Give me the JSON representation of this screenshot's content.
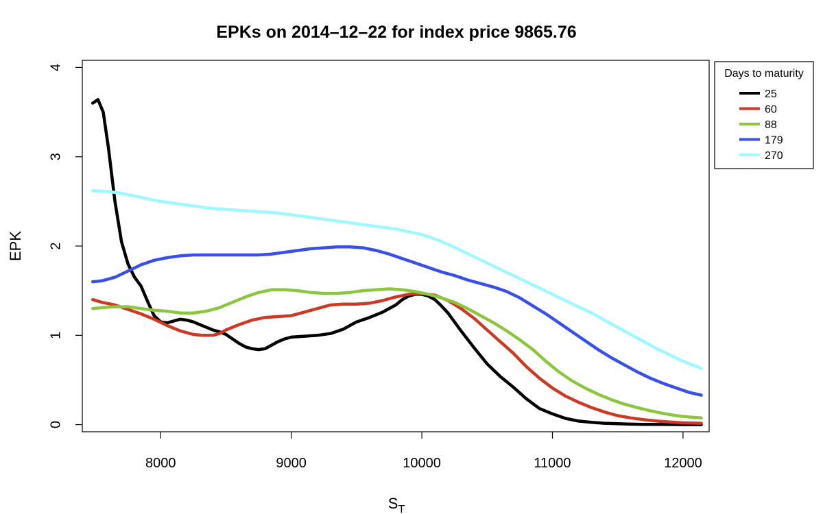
{
  "chart_data": {
    "type": "line",
    "title": "EPKs on 2014–12–22 for index price 9865.76",
    "xlabel": "S",
    "xlabel_sub": "T",
    "ylabel": "EPK",
    "xlim": [
      7400,
      12200
    ],
    "ylim": [
      -0.08,
      4.08
    ],
    "x_ticks": [
      8000,
      9000,
      10000,
      11000,
      12000
    ],
    "y_ticks": [
      0,
      1,
      2,
      3,
      4
    ],
    "grid": false,
    "legend": {
      "title": "Days to maturity",
      "placement": "outside-top-right"
    },
    "series": [
      {
        "name": "25",
        "color": "#000000",
        "points": [
          [
            7480,
            3.6
          ],
          [
            7520,
            3.64
          ],
          [
            7560,
            3.5
          ],
          [
            7600,
            3.1
          ],
          [
            7650,
            2.5
          ],
          [
            7700,
            2.05
          ],
          [
            7750,
            1.8
          ],
          [
            7800,
            1.65
          ],
          [
            7850,
            1.55
          ],
          [
            7900,
            1.38
          ],
          [
            7950,
            1.22
          ],
          [
            8000,
            1.15
          ],
          [
            8050,
            1.14
          ],
          [
            8100,
            1.16
          ],
          [
            8150,
            1.18
          ],
          [
            8200,
            1.17
          ],
          [
            8250,
            1.15
          ],
          [
            8300,
            1.12
          ],
          [
            8350,
            1.09
          ],
          [
            8400,
            1.06
          ],
          [
            8450,
            1.04
          ],
          [
            8500,
            1.01
          ],
          [
            8550,
            0.96
          ],
          [
            8600,
            0.91
          ],
          [
            8650,
            0.87
          ],
          [
            8700,
            0.85
          ],
          [
            8750,
            0.84
          ],
          [
            8800,
            0.85
          ],
          [
            8850,
            0.89
          ],
          [
            8900,
            0.93
          ],
          [
            8950,
            0.96
          ],
          [
            9000,
            0.98
          ],
          [
            9100,
            0.99
          ],
          [
            9200,
            1.0
          ],
          [
            9300,
            1.02
          ],
          [
            9400,
            1.07
          ],
          [
            9500,
            1.15
          ],
          [
            9600,
            1.2
          ],
          [
            9700,
            1.26
          ],
          [
            9800,
            1.34
          ],
          [
            9850,
            1.4
          ],
          [
            9900,
            1.44
          ],
          [
            9950,
            1.46
          ],
          [
            10000,
            1.46
          ],
          [
            10050,
            1.44
          ],
          [
            10100,
            1.4
          ],
          [
            10150,
            1.33
          ],
          [
            10200,
            1.25
          ],
          [
            10300,
            1.05
          ],
          [
            10400,
            0.86
          ],
          [
            10500,
            0.68
          ],
          [
            10600,
            0.54
          ],
          [
            10700,
            0.42
          ],
          [
            10800,
            0.29
          ],
          [
            10900,
            0.18
          ],
          [
            11000,
            0.12
          ],
          [
            11100,
            0.07
          ],
          [
            11200,
            0.04
          ],
          [
            11300,
            0.025
          ],
          [
            11400,
            0.015
          ],
          [
            11500,
            0.01
          ],
          [
            11600,
            0.005
          ],
          [
            11700,
            0.003
          ],
          [
            11800,
            0.002
          ],
          [
            11900,
            0.001
          ],
          [
            12000,
            0.0
          ],
          [
            12140,
            0.0
          ]
        ]
      },
      {
        "name": "60",
        "color": "#cc3a25",
        "points": [
          [
            7480,
            1.4
          ],
          [
            7550,
            1.37
          ],
          [
            7650,
            1.34
          ],
          [
            7750,
            1.29
          ],
          [
            7850,
            1.24
          ],
          [
            7950,
            1.18
          ],
          [
            8050,
            1.11
          ],
          [
            8150,
            1.05
          ],
          [
            8250,
            1.01
          ],
          [
            8320,
            1.0
          ],
          [
            8400,
            1.0
          ],
          [
            8450,
            1.02
          ],
          [
            8500,
            1.06
          ],
          [
            8600,
            1.12
          ],
          [
            8700,
            1.17
          ],
          [
            8800,
            1.2
          ],
          [
            8900,
            1.21
          ],
          [
            9000,
            1.22
          ],
          [
            9100,
            1.26
          ],
          [
            9200,
            1.3
          ],
          [
            9300,
            1.34
          ],
          [
            9400,
            1.35
          ],
          [
            9500,
            1.35
          ],
          [
            9600,
            1.36
          ],
          [
            9700,
            1.39
          ],
          [
            9800,
            1.43
          ],
          [
            9900,
            1.46
          ],
          [
            10000,
            1.47
          ],
          [
            10100,
            1.45
          ],
          [
            10200,
            1.39
          ],
          [
            10300,
            1.3
          ],
          [
            10400,
            1.19
          ],
          [
            10500,
            1.06
          ],
          [
            10600,
            0.93
          ],
          [
            10700,
            0.8
          ],
          [
            10800,
            0.65
          ],
          [
            10900,
            0.52
          ],
          [
            11000,
            0.41
          ],
          [
            11100,
            0.32
          ],
          [
            11200,
            0.25
          ],
          [
            11300,
            0.19
          ],
          [
            11400,
            0.14
          ],
          [
            11500,
            0.1
          ],
          [
            11600,
            0.075
          ],
          [
            11700,
            0.055
          ],
          [
            11800,
            0.04
          ],
          [
            11900,
            0.03
          ],
          [
            12000,
            0.02
          ],
          [
            12140,
            0.015
          ]
        ]
      },
      {
        "name": "88",
        "color": "#8cc63f",
        "points": [
          [
            7480,
            1.3
          ],
          [
            7550,
            1.31
          ],
          [
            7650,
            1.32
          ],
          [
            7750,
            1.32
          ],
          [
            7850,
            1.3
          ],
          [
            7950,
            1.28
          ],
          [
            8050,
            1.27
          ],
          [
            8150,
            1.25
          ],
          [
            8250,
            1.25
          ],
          [
            8350,
            1.27
          ],
          [
            8450,
            1.31
          ],
          [
            8550,
            1.37
          ],
          [
            8650,
            1.43
          ],
          [
            8750,
            1.48
          ],
          [
            8850,
            1.51
          ],
          [
            8950,
            1.51
          ],
          [
            9050,
            1.5
          ],
          [
            9150,
            1.48
          ],
          [
            9250,
            1.47
          ],
          [
            9350,
            1.47
          ],
          [
            9450,
            1.48
          ],
          [
            9550,
            1.5
          ],
          [
            9650,
            1.51
          ],
          [
            9750,
            1.52
          ],
          [
            9850,
            1.51
          ],
          [
            9950,
            1.49
          ],
          [
            10050,
            1.46
          ],
          [
            10150,
            1.42
          ],
          [
            10250,
            1.37
          ],
          [
            10350,
            1.3
          ],
          [
            10450,
            1.22
          ],
          [
            10550,
            1.14
          ],
          [
            10650,
            1.05
          ],
          [
            10750,
            0.95
          ],
          [
            10850,
            0.84
          ],
          [
            10950,
            0.71
          ],
          [
            11050,
            0.59
          ],
          [
            11150,
            0.49
          ],
          [
            11250,
            0.41
          ],
          [
            11350,
            0.34
          ],
          [
            11450,
            0.28
          ],
          [
            11550,
            0.23
          ],
          [
            11650,
            0.19
          ],
          [
            11750,
            0.155
          ],
          [
            11850,
            0.125
          ],
          [
            11950,
            0.1
          ],
          [
            12050,
            0.085
          ],
          [
            12140,
            0.075
          ]
        ]
      },
      {
        "name": "179",
        "color": "#3a4fe8",
        "points": [
          [
            7480,
            1.6
          ],
          [
            7550,
            1.61
          ],
          [
            7650,
            1.65
          ],
          [
            7750,
            1.72
          ],
          [
            7850,
            1.79
          ],
          [
            7950,
            1.84
          ],
          [
            8050,
            1.87
          ],
          [
            8150,
            1.89
          ],
          [
            8250,
            1.9
          ],
          [
            8350,
            1.9
          ],
          [
            8450,
            1.9
          ],
          [
            8550,
            1.9
          ],
          [
            8650,
            1.9
          ],
          [
            8750,
            1.9
          ],
          [
            8850,
            1.91
          ],
          [
            8950,
            1.93
          ],
          [
            9050,
            1.95
          ],
          [
            9150,
            1.97
          ],
          [
            9250,
            1.98
          ],
          [
            9350,
            1.99
          ],
          [
            9450,
            1.99
          ],
          [
            9550,
            1.98
          ],
          [
            9650,
            1.95
          ],
          [
            9750,
            1.91
          ],
          [
            9850,
            1.86
          ],
          [
            9950,
            1.81
          ],
          [
            10050,
            1.76
          ],
          [
            10150,
            1.71
          ],
          [
            10250,
            1.67
          ],
          [
            10350,
            1.62
          ],
          [
            10450,
            1.58
          ],
          [
            10550,
            1.54
          ],
          [
            10650,
            1.49
          ],
          [
            10750,
            1.42
          ],
          [
            10850,
            1.33
          ],
          [
            10950,
            1.24
          ],
          [
            11050,
            1.14
          ],
          [
            11150,
            1.04
          ],
          [
            11250,
            0.94
          ],
          [
            11350,
            0.84
          ],
          [
            11450,
            0.75
          ],
          [
            11550,
            0.67
          ],
          [
            11650,
            0.59
          ],
          [
            11750,
            0.52
          ],
          [
            11850,
            0.46
          ],
          [
            11950,
            0.41
          ],
          [
            12050,
            0.36
          ],
          [
            12140,
            0.33
          ]
        ]
      },
      {
        "name": "270",
        "color": "#a0f8ff",
        "points": [
          [
            7480,
            2.62
          ],
          [
            7600,
            2.61
          ],
          [
            7700,
            2.59
          ],
          [
            7800,
            2.56
          ],
          [
            7900,
            2.53
          ],
          [
            8000,
            2.5
          ],
          [
            8100,
            2.48
          ],
          [
            8200,
            2.46
          ],
          [
            8300,
            2.44
          ],
          [
            8400,
            2.42
          ],
          [
            8500,
            2.41
          ],
          [
            8600,
            2.4
          ],
          [
            8700,
            2.39
          ],
          [
            8800,
            2.38
          ],
          [
            8900,
            2.37
          ],
          [
            9000,
            2.35
          ],
          [
            9100,
            2.33
          ],
          [
            9200,
            2.31
          ],
          [
            9300,
            2.29
          ],
          [
            9400,
            2.27
          ],
          [
            9500,
            2.25
          ],
          [
            9600,
            2.23
          ],
          [
            9700,
            2.21
          ],
          [
            9800,
            2.19
          ],
          [
            9900,
            2.16
          ],
          [
            10000,
            2.13
          ],
          [
            10100,
            2.08
          ],
          [
            10200,
            2.02
          ],
          [
            10300,
            1.95
          ],
          [
            10400,
            1.88
          ],
          [
            10500,
            1.81
          ],
          [
            10600,
            1.74
          ],
          [
            10700,
            1.67
          ],
          [
            10800,
            1.6
          ],
          [
            10900,
            1.53
          ],
          [
            11000,
            1.46
          ],
          [
            11100,
            1.39
          ],
          [
            11200,
            1.32
          ],
          [
            11300,
            1.25
          ],
          [
            11400,
            1.17
          ],
          [
            11500,
            1.09
          ],
          [
            11600,
            1.01
          ],
          [
            11700,
            0.93
          ],
          [
            11800,
            0.85
          ],
          [
            11900,
            0.78
          ],
          [
            12000,
            0.71
          ],
          [
            12140,
            0.63
          ]
        ]
      }
    ]
  }
}
